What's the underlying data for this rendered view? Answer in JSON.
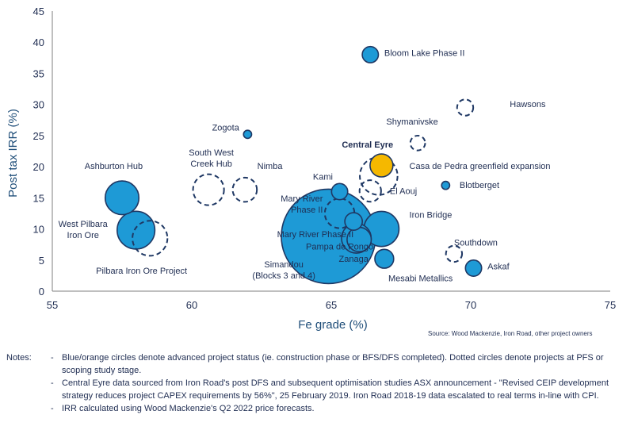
{
  "chart_data": {
    "type": "scatter",
    "title": "",
    "xlabel": "Fe grade (%)",
    "ylabel": "Post tax IRR (%)",
    "xlim": [
      55,
      75
    ],
    "ylim": [
      0,
      45
    ],
    "xticks": [
      55,
      60,
      65,
      70,
      75
    ],
    "yticks": [
      0,
      5,
      10,
      15,
      20,
      25,
      30,
      35,
      40,
      45
    ],
    "grid": false,
    "colors": {
      "advanced": "#1e9ad6",
      "highlight": "#f5b800",
      "outline": "#1f3864"
    },
    "points": [
      {
        "name": "Bloom Lake Phase II",
        "x": 66.4,
        "y": 38,
        "size": 0.6,
        "status": "advanced"
      },
      {
        "name": "Hawsons",
        "x": 69.8,
        "y": 29.5,
        "size": 0.6,
        "status": "study"
      },
      {
        "name": "Zogota",
        "x": 62,
        "y": 25.2,
        "size": 0.3,
        "status": "advanced"
      },
      {
        "name": "Shymanivske",
        "x": 68.1,
        "y": 23.8,
        "size": 0.55,
        "status": "study"
      },
      {
        "name": "Central Eyre",
        "x": 66.8,
        "y": 20.2,
        "size": 0.85,
        "status": "highlight"
      },
      {
        "name": "Casa de Pedra greenfield expansion",
        "x": 66.7,
        "y": 18.5,
        "size": 1.4,
        "status": "study"
      },
      {
        "name": "South West Creek Hub",
        "x": 60.6,
        "y": 16.3,
        "size": 1.15,
        "status": "study"
      },
      {
        "name": "Nimba",
        "x": 61.9,
        "y": 16.3,
        "size": 0.9,
        "status": "study"
      },
      {
        "name": "Kami",
        "x": 65.3,
        "y": 16,
        "size": 0.6,
        "status": "advanced"
      },
      {
        "name": "El Aouj",
        "x": 66.4,
        "y": 16.1,
        "size": 0.8,
        "status": "study"
      },
      {
        "name": "Blotberget",
        "x": 69.1,
        "y": 17,
        "size": 0.3,
        "status": "advanced"
      },
      {
        "name": "Ashburton Hub",
        "x": 57.5,
        "y": 15,
        "size": 1.25,
        "status": "advanced"
      },
      {
        "name": "Mary River Phase II",
        "x": 65.3,
        "y": 12.5,
        "size": 1.1,
        "status": "study"
      },
      {
        "name": "Mary River Phase II",
        "x": 65.8,
        "y": 11.2,
        "size": 0.65,
        "status": "advanced"
      },
      {
        "name": "Iron Bridge",
        "x": 66.8,
        "y": 10,
        "size": 1.3,
        "status": "advanced"
      },
      {
        "name": "West Pilbara Iron Ore",
        "x": 58,
        "y": 9.8,
        "size": 1.4,
        "status": "advanced"
      },
      {
        "name": "Pilbara Iron Ore Project",
        "x": 58.5,
        "y": 8.5,
        "size": 1.3,
        "status": "study"
      },
      {
        "name": "Simandou (Blocks 3 and 4)",
        "x": 64.9,
        "y": 8.8,
        "size": 3.5,
        "status": "advanced"
      },
      {
        "name": "Pampa de Pongo",
        "x": 65.9,
        "y": 8.5,
        "size": 1.1,
        "status": "advanced"
      },
      {
        "name": "Southdown",
        "x": 69.4,
        "y": 6,
        "size": 0.6,
        "status": "study"
      },
      {
        "name": "Zanaga",
        "x": 66.9,
        "y": 5.2,
        "size": 0.7,
        "status": "advanced"
      },
      {
        "name": "Askaf",
        "x": 70.1,
        "y": 3.7,
        "size": 0.6,
        "status": "advanced"
      },
      {
        "name": "Mesabi Metallics",
        "x": 66,
        "y": 8.3,
        "size": 0.9,
        "status": "advanced"
      }
    ],
    "labels": [
      {
        "lines": [
          "Bloom Lake Phase II"
        ],
        "x": 66.9,
        "y": 37.8,
        "anchor": "start"
      },
      {
        "lines": [
          "Hawsons"
        ],
        "x": 71.4,
        "y": 29.6,
        "anchor": "start"
      },
      {
        "lines": [
          "Zogota"
        ],
        "x": 61.7,
        "y": 25.8,
        "anchor": "end"
      },
      {
        "lines": [
          "Shymanivske"
        ],
        "x": 67.9,
        "y": 26.8,
        "anchor": "middle"
      },
      {
        "lines": [
          "Central Eyre"
        ],
        "x": 66.3,
        "y": 23.1,
        "anchor": "middle",
        "bold": true
      },
      {
        "lines": [
          "Casa de Pedra greenfield expansion"
        ],
        "x": 67.8,
        "y": 19.6,
        "anchor": "start"
      },
      {
        "lines": [
          "South West",
          "Creek Hub"
        ],
        "x": 60.7,
        "y": 21.8,
        "anchor": "middle"
      },
      {
        "lines": [
          "Nimba"
        ],
        "x": 62.8,
        "y": 19.6,
        "anchor": "middle"
      },
      {
        "lines": [
          "Kami"
        ],
        "x": 64.7,
        "y": 17.9,
        "anchor": "middle"
      },
      {
        "lines": [
          "El Aouj"
        ],
        "x": 67.1,
        "y": 15.6,
        "anchor": "start"
      },
      {
        "lines": [
          "Blotberget"
        ],
        "x": 69.6,
        "y": 16.6,
        "anchor": "start"
      },
      {
        "lines": [
          "Ashburton Hub"
        ],
        "x": 57.2,
        "y": 19.6,
        "anchor": "middle"
      },
      {
        "lines": [
          "Mary River",
          "Phase II"
        ],
        "x": 64.7,
        "y": 14.4,
        "anchor": "end"
      },
      {
        "lines": [
          "Iron Bridge"
        ],
        "x": 67.8,
        "y": 11.8,
        "anchor": "start"
      },
      {
        "lines": [
          "West Pilbara",
          "Iron Ore"
        ],
        "x": 56.1,
        "y": 10.3,
        "anchor": "middle"
      },
      {
        "lines": [
          "Pilbara Iron Ore Project"
        ],
        "x": 58.2,
        "y": 2.8,
        "anchor": "middle"
      },
      {
        "lines": [
          "Mary River Phase II"
        ],
        "x": 65.8,
        "y": 8.7,
        "anchor": "end"
      },
      {
        "lines": [
          "Pampa de Pongo"
        ],
        "x": 65.3,
        "y": 6.7,
        "anchor": "middle"
      },
      {
        "lines": [
          "Simandou",
          "(Blocks 3 and 4)"
        ],
        "x": 63.3,
        "y": 3.8,
        "anchor": "middle"
      },
      {
        "lines": [
          "Zanaga"
        ],
        "x": 65.8,
        "y": 4.7,
        "anchor": "middle"
      },
      {
        "lines": [
          "Mesabi Metallics"
        ],
        "x": 68.2,
        "y": 1.6,
        "anchor": "middle"
      },
      {
        "lines": [
          "Southdown"
        ],
        "x": 69.4,
        "y": 7.3,
        "anchor": "start"
      },
      {
        "lines": [
          "Askaf"
        ],
        "x": 70.6,
        "y": 3.5,
        "anchor": "start"
      }
    ]
  },
  "source": "Source:        Wood Mackenzie, Iron Road, other project owners",
  "notes": {
    "heading": "Notes:",
    "items": [
      {
        "dash": "-",
        "text": "Blue/orange circles denote advanced project status (ie. construction phase or BFS/DFS completed). Dotted circles denote projects at PFS or scoping study stage."
      },
      {
        "dash": "-",
        "text": "Central Eyre data sourced from Iron Road's post DFS and subsequent optimisation studies ASX announcement - \"Revised CEIP development strategy reduces project CAPEX requirements by 56%\", 25 February 2019. Iron Road 2018-19 data escalated to real terms in-line with CPI."
      },
      {
        "dash": "-",
        "text": "IRR calculated using Wood Mackenzie's Q2 2022 price forecasts."
      }
    ]
  }
}
